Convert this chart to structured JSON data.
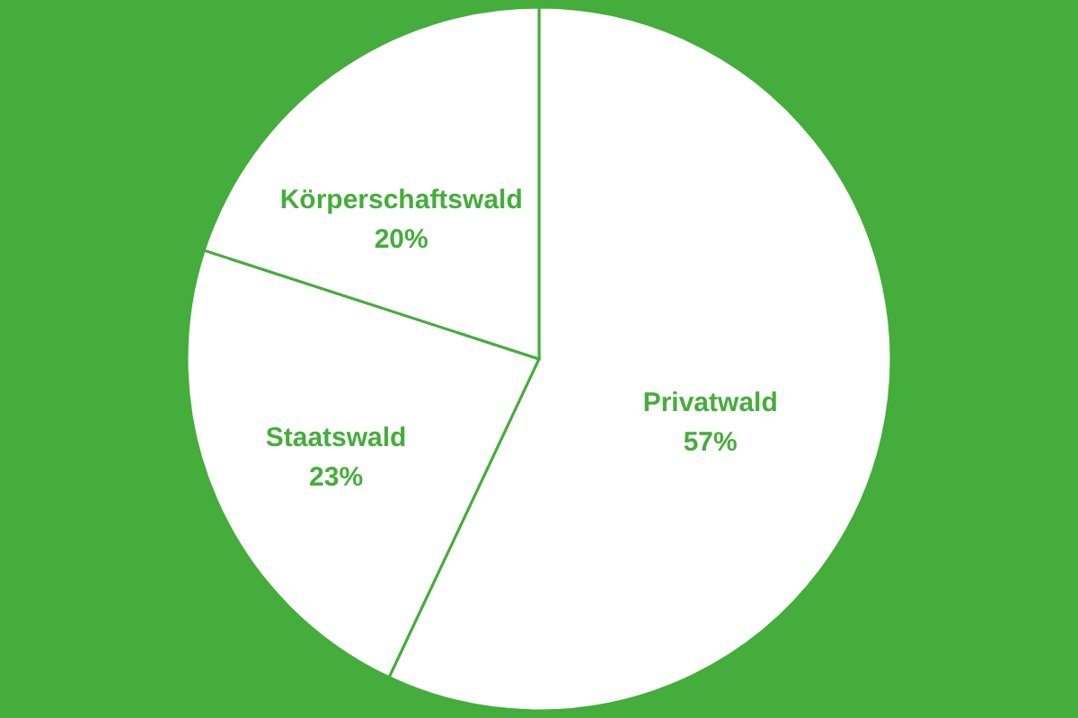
{
  "chart_data": {
    "type": "pie",
    "categories": [
      "Privatwald",
      "Staatswald",
      "Körperschaftswald"
    ],
    "values": [
      57,
      23,
      20
    ],
    "colors": [
      "#ffffff",
      "#ffffff",
      "#ffffff"
    ],
    "value_labels": [
      "57%",
      "23%",
      "20%"
    ]
  }
}
